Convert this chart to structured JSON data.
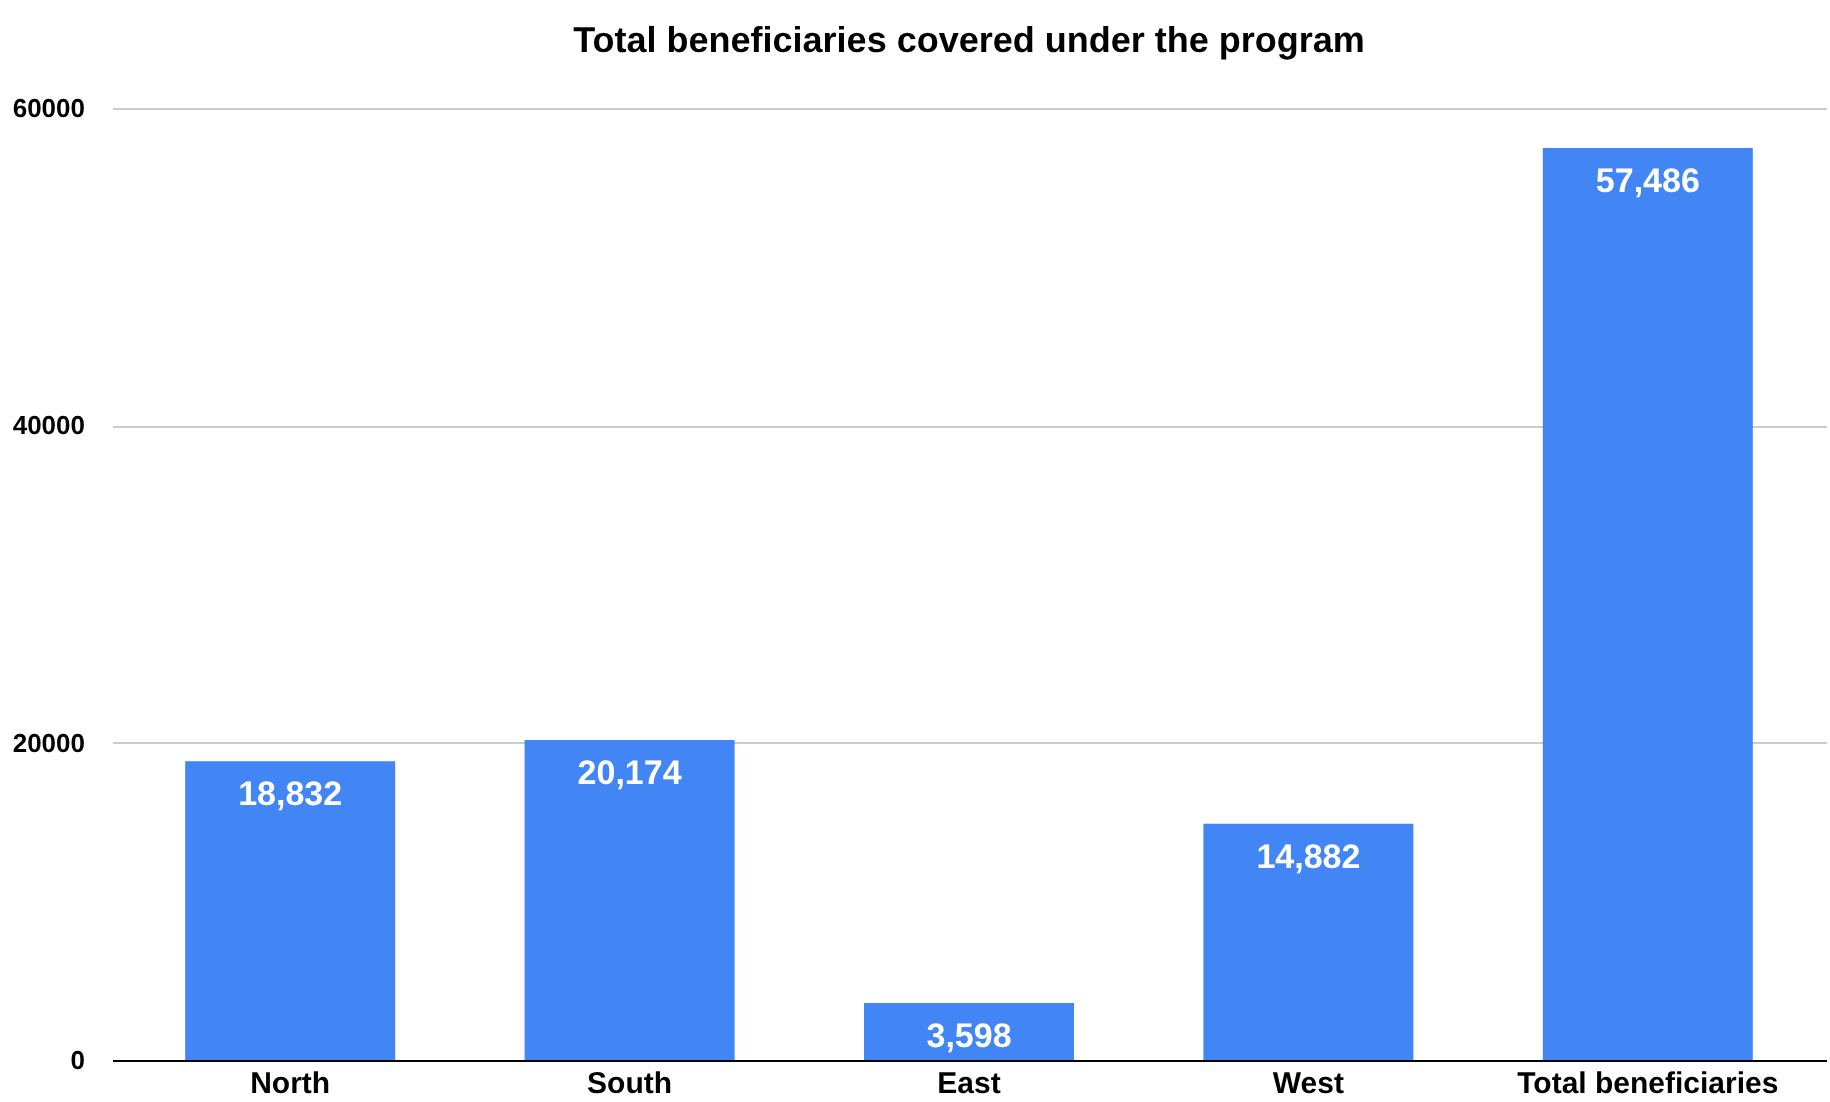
{
  "chart_data": {
    "type": "bar",
    "title": "Total beneficiaries covered under the program",
    "categories": [
      "North",
      "South",
      "East",
      "West",
      "Total beneficiaries"
    ],
    "values": [
      18832,
      20174,
      3598,
      14882,
      57486
    ],
    "value_labels": [
      "18,832",
      "20,174",
      "3,598",
      "14,882",
      "57,486"
    ],
    "color": "#4285f4",
    "ylim": [
      0,
      60000
    ],
    "yticks": [
      0,
      20000,
      40000,
      60000
    ],
    "grid": "y"
  }
}
